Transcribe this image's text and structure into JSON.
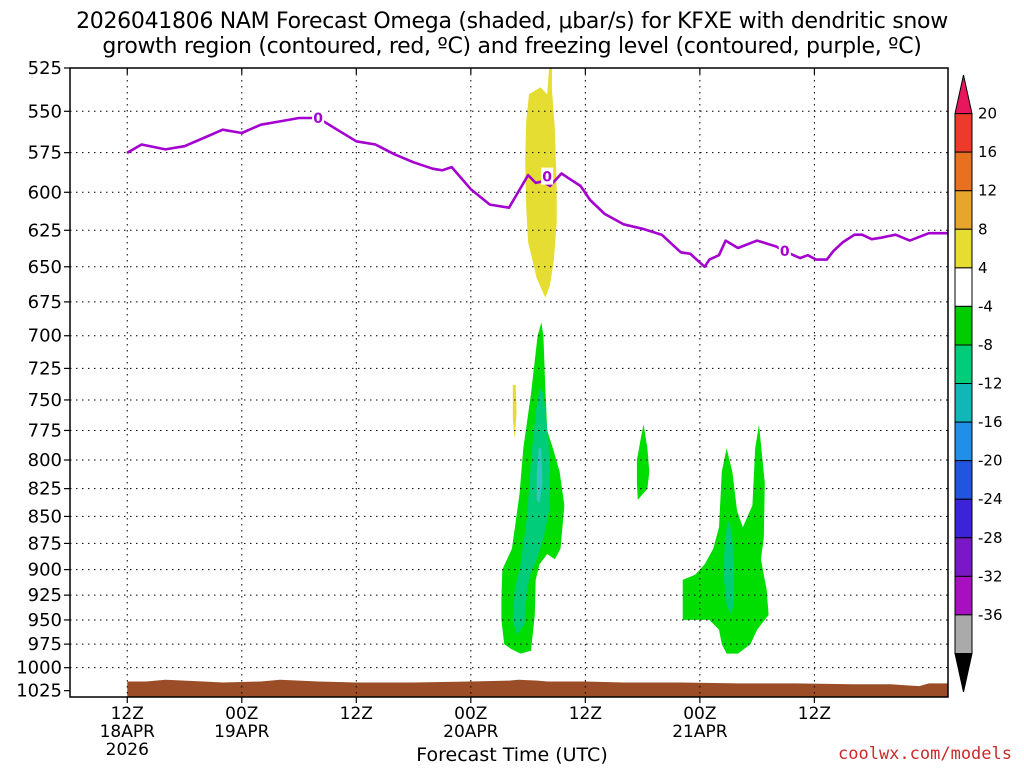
{
  "title": {
    "line1": "2026041806 NAM Forecast Omega (shaded, μbar/s) for KFXE with dendritic snow",
    "line2": "growth region (contoured, red, ºC) and freezing level (contoured, purple, ºC)"
  },
  "credit": "coolwx.com/models",
  "colors": {
    "freezing_line": "#a400d0",
    "terrain": "#9a4d27",
    "green_light": "#00dd00",
    "green_mid": "#00cc7a",
    "teal": "#33c4c0",
    "yellow": "#e6dd33"
  },
  "chart_data": {
    "type": "heatmap",
    "xlabel": "Forecast Time (UTC)",
    "ylabel": "",
    "ylim": [
      525,
      1025
    ],
    "x_tick_labels": [
      {
        "time": "12Z",
        "date": "18APR",
        "year": "2026"
      },
      {
        "time": "00Z",
        "date": "19APR",
        "year": ""
      },
      {
        "time": "12Z",
        "date": "",
        "year": ""
      },
      {
        "time": "00Z",
        "date": "20APR",
        "year": ""
      },
      {
        "time": "12Z",
        "date": "",
        "year": ""
      },
      {
        "time": "00Z",
        "date": "21APR",
        "year": ""
      },
      {
        "time": "12Z",
        "date": "",
        "year": ""
      }
    ],
    "y_ticks": [
      525,
      550,
      575,
      600,
      625,
      650,
      675,
      700,
      725,
      750,
      775,
      800,
      825,
      850,
      875,
      900,
      925,
      950,
      975,
      1000,
      1025
    ],
    "grid": true,
    "colorbar": {
      "labels": [
        "20",
        "16",
        "12",
        "8",
        "4",
        "-4",
        "-8",
        "-12",
        "-16",
        "-20",
        "-24",
        "-28",
        "-32",
        "-36"
      ],
      "bins": [
        {
          "color": "#e8175d"
        },
        {
          "color": "#ec3b2b"
        },
        {
          "color": "#e8711f"
        },
        {
          "color": "#e8a52b"
        },
        {
          "color": "#e6dd33"
        },
        {
          "color": "#ffffff"
        },
        {
          "color": "#00cc00"
        },
        {
          "color": "#00cc7a"
        },
        {
          "color": "#11b7b7"
        },
        {
          "color": "#1f8fea"
        },
        {
          "color": "#2255dd"
        },
        {
          "color": "#3b24d8"
        },
        {
          "color": "#7a18c8"
        },
        {
          "color": "#a80fc0"
        },
        {
          "color": "#aaaaaa"
        },
        {
          "color": "#000000"
        }
      ]
    },
    "freezing_level": {
      "label": "0",
      "hours": [
        0,
        1.5,
        4,
        6,
        8,
        10,
        12,
        14,
        16,
        18,
        20,
        22,
        24,
        26,
        28,
        30,
        32,
        33,
        34,
        36,
        38,
        40,
        42,
        42.8,
        43.5,
        44.3,
        45.5,
        46.5,
        47.5,
        48.5,
        50,
        52,
        54,
        56,
        58,
        59,
        60.5,
        61,
        62,
        62.7,
        64,
        66,
        68,
        68.8,
        70.5,
        71.3,
        72.2,
        73.3,
        74,
        75,
        76.2,
        77,
        78,
        79,
        80.5,
        82,
        84,
        86
      ],
      "pressure_hpa": [
        575,
        570,
        573,
        571,
        566,
        561,
        563,
        558,
        556,
        554,
        554,
        561,
        568,
        570,
        576,
        581,
        585,
        586,
        584,
        598,
        608,
        610,
        589,
        594,
        593,
        596,
        588,
        592,
        596,
        605,
        614,
        621,
        624,
        628,
        640,
        641,
        650,
        645,
        642,
        632,
        637,
        632,
        636,
        639,
        644,
        642,
        645,
        645,
        639,
        633,
        628,
        628,
        631,
        630,
        628,
        632,
        627,
        627
      ]
    },
    "omega_regions": [
      {
        "bin": "4 to 8",
        "pts": [
          [
            44.5,
            537
          ],
          [
            44.8,
            560
          ],
          [
            45,
            598
          ],
          [
            45,
            620
          ],
          [
            44.7,
            645
          ],
          [
            44.3,
            663
          ],
          [
            43.8,
            672
          ],
          [
            42.9,
            658
          ],
          [
            42,
            633
          ],
          [
            41.8,
            610
          ],
          [
            41.7,
            580
          ],
          [
            41.8,
            556
          ],
          [
            42.1,
            540
          ],
          [
            43.3,
            536
          ],
          [
            44,
            540
          ],
          [
            44.2,
            525
          ],
          [
            44.5,
            525
          ]
        ]
      },
      {
        "bin": "4 to 8",
        "pts": [
          [
            40.4,
            738
          ],
          [
            40.7,
            738
          ],
          [
            40.8,
            760
          ],
          [
            40.6,
            782
          ],
          [
            40.4,
            765
          ]
        ]
      },
      {
        "bin": "-4 to -8",
        "pts": [
          [
            43.6,
            700
          ],
          [
            43.4,
            690
          ],
          [
            43,
            700
          ],
          [
            42.3,
            745
          ],
          [
            41.5,
            790
          ],
          [
            41.1,
            830
          ],
          [
            40.3,
            880
          ],
          [
            39.3,
            900
          ],
          [
            39.2,
            928
          ],
          [
            39.2,
            950
          ],
          [
            39.5,
            975
          ],
          [
            40.2,
            980
          ],
          [
            41.2,
            985
          ],
          [
            42.3,
            982
          ],
          [
            42.7,
            945
          ],
          [
            42.8,
            910
          ],
          [
            43.2,
            895
          ],
          [
            44,
            885
          ],
          [
            44.8,
            890
          ],
          [
            45.4,
            880
          ],
          [
            45.8,
            840
          ],
          [
            45.3,
            810
          ],
          [
            44.6,
            790
          ],
          [
            44,
            775
          ],
          [
            43.8,
            740
          ]
        ]
      },
      {
        "bin": "-8 to -12",
        "pts": [
          [
            43.6,
            745
          ],
          [
            43.2,
            740
          ],
          [
            42.8,
            760
          ],
          [
            42.3,
            800
          ],
          [
            41.9,
            850
          ],
          [
            41.2,
            895
          ],
          [
            40.6,
            920
          ],
          [
            40.4,
            950
          ],
          [
            40.8,
            965
          ],
          [
            41.6,
            955
          ],
          [
            41.9,
            920
          ],
          [
            42.2,
            905
          ],
          [
            42.9,
            890
          ],
          [
            43.6,
            870
          ],
          [
            44.2,
            845
          ],
          [
            44.3,
            810
          ],
          [
            44.1,
            780
          ]
        ]
      },
      {
        "bin": "-12 to -16",
        "pts": [
          [
            43.4,
            790
          ],
          [
            43.1,
            790
          ],
          [
            42.9,
            812
          ],
          [
            42.9,
            835
          ],
          [
            43.2,
            838
          ],
          [
            43.5,
            820
          ]
        ]
      },
      {
        "bin": "-4 to -8",
        "pts": [
          [
            54.1,
            770
          ],
          [
            53.8,
            782
          ],
          [
            53.4,
            800
          ],
          [
            53.4,
            820
          ],
          [
            53.5,
            835
          ],
          [
            54,
            830
          ],
          [
            54.5,
            825
          ],
          [
            54.7,
            810
          ],
          [
            54.5,
            790
          ]
        ]
      },
      {
        "bin": "-4 to -8",
        "pts": [
          [
            58.2,
            910
          ],
          [
            58.2,
            950
          ],
          [
            61,
            950
          ],
          [
            62,
            960
          ],
          [
            62.3,
            975
          ],
          [
            62.8,
            985
          ],
          [
            64,
            985
          ],
          [
            65.3,
            975
          ],
          [
            66,
            960
          ],
          [
            67.2,
            945
          ],
          [
            67,
            920
          ],
          [
            66.4,
            890
          ],
          [
            66.7,
            870
          ],
          [
            66.8,
            820
          ],
          [
            66.2,
            770
          ],
          [
            65.8,
            790
          ],
          [
            65.5,
            840
          ],
          [
            64.5,
            860
          ],
          [
            63.9,
            845
          ],
          [
            63.4,
            810
          ],
          [
            62.8,
            790
          ],
          [
            62.3,
            810
          ],
          [
            62,
            860
          ],
          [
            61.4,
            880
          ],
          [
            60.5,
            895
          ],
          [
            59.5,
            905
          ]
        ]
      },
      {
        "bin": "-8 to -12",
        "pts": [
          [
            62.9,
            855
          ],
          [
            62.6,
            875
          ],
          [
            62.5,
            905
          ],
          [
            62.8,
            935
          ],
          [
            63.3,
            945
          ],
          [
            63.6,
            930
          ],
          [
            63.6,
            895
          ],
          [
            63.4,
            870
          ],
          [
            63.1,
            855
          ]
        ]
      }
    ],
    "terrain_surface_hpa": {
      "hours": [
        0,
        2,
        4,
        8,
        10,
        14,
        16,
        20,
        24,
        30,
        36,
        40,
        41,
        43,
        44,
        48,
        52,
        58,
        64,
        70,
        76,
        80,
        81.5,
        83,
        84,
        86
      ],
      "pressure_hpa": [
        1015,
        1015,
        1013,
        1015,
        1016,
        1015,
        1013,
        1015,
        1016,
        1016,
        1015,
        1014,
        1013,
        1014,
        1015,
        1015,
        1016,
        1016,
        1017,
        1017,
        1018,
        1018,
        1019,
        1020,
        1017,
        1017
      ]
    }
  }
}
